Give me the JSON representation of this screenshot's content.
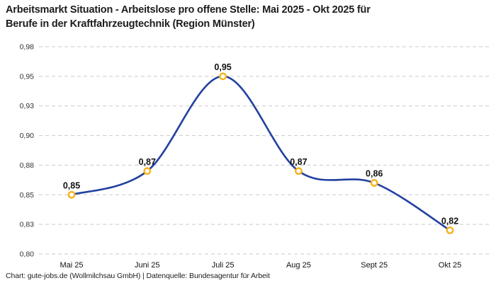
{
  "title": {
    "line1": "Arbeitsmarkt Situation - Arbeitslose pro offene Stelle: Mai 2025 - Okt 2025 für",
    "line2": "Berufe in der Kraftfahrzeugtechnik (Region Münster)"
  },
  "footer": "Chart: gute-jobs.de (Wollmilchsau GmbH) | Datenquelle: Bundesagentur für Arbeit",
  "colors": {
    "line": "#2340a0",
    "marker_stroke": "#f5b31b",
    "marker_fill": "#ffffff",
    "grid": "#c9c9c9",
    "data_label": "#111111",
    "axis_text": "#333333",
    "background": "#ffffff"
  },
  "chart_data": {
    "type": "line",
    "title": "Arbeitsmarkt Situation - Arbeitslose pro offene Stelle: Mai 2025 - Okt 2025 für Berufe in der Kraftfahrzeugtechnik (Region Münster)",
    "categories": [
      "Mai 25",
      "Juni 25",
      "Juli 25",
      "Aug 25",
      "Sept 25",
      "Okt 25"
    ],
    "values": [
      0.85,
      0.87,
      0.95,
      0.87,
      0.86,
      0.82
    ],
    "value_labels": [
      "0,85",
      "0,87",
      "0,95",
      "0,87",
      "0,86",
      "0,82"
    ],
    "xlabel": "",
    "ylabel": "",
    "ylim": [
      0.8,
      0.975
    ],
    "y_ticks": [
      {
        "value": 0.975,
        "label": "0,98"
      },
      {
        "value": 0.95,
        "label": "0,95"
      },
      {
        "value": 0.925,
        "label": "0,93"
      },
      {
        "value": 0.9,
        "label": "0,90"
      },
      {
        "value": 0.875,
        "label": "0,88"
      },
      {
        "value": 0.85,
        "label": "0,85"
      },
      {
        "value": 0.825,
        "label": "0,83"
      },
      {
        "value": 0.8,
        "label": "0,80"
      }
    ],
    "grid": "horizontal-dashed",
    "legend": "none",
    "line_style": "smooth",
    "marker": "open-circle"
  }
}
